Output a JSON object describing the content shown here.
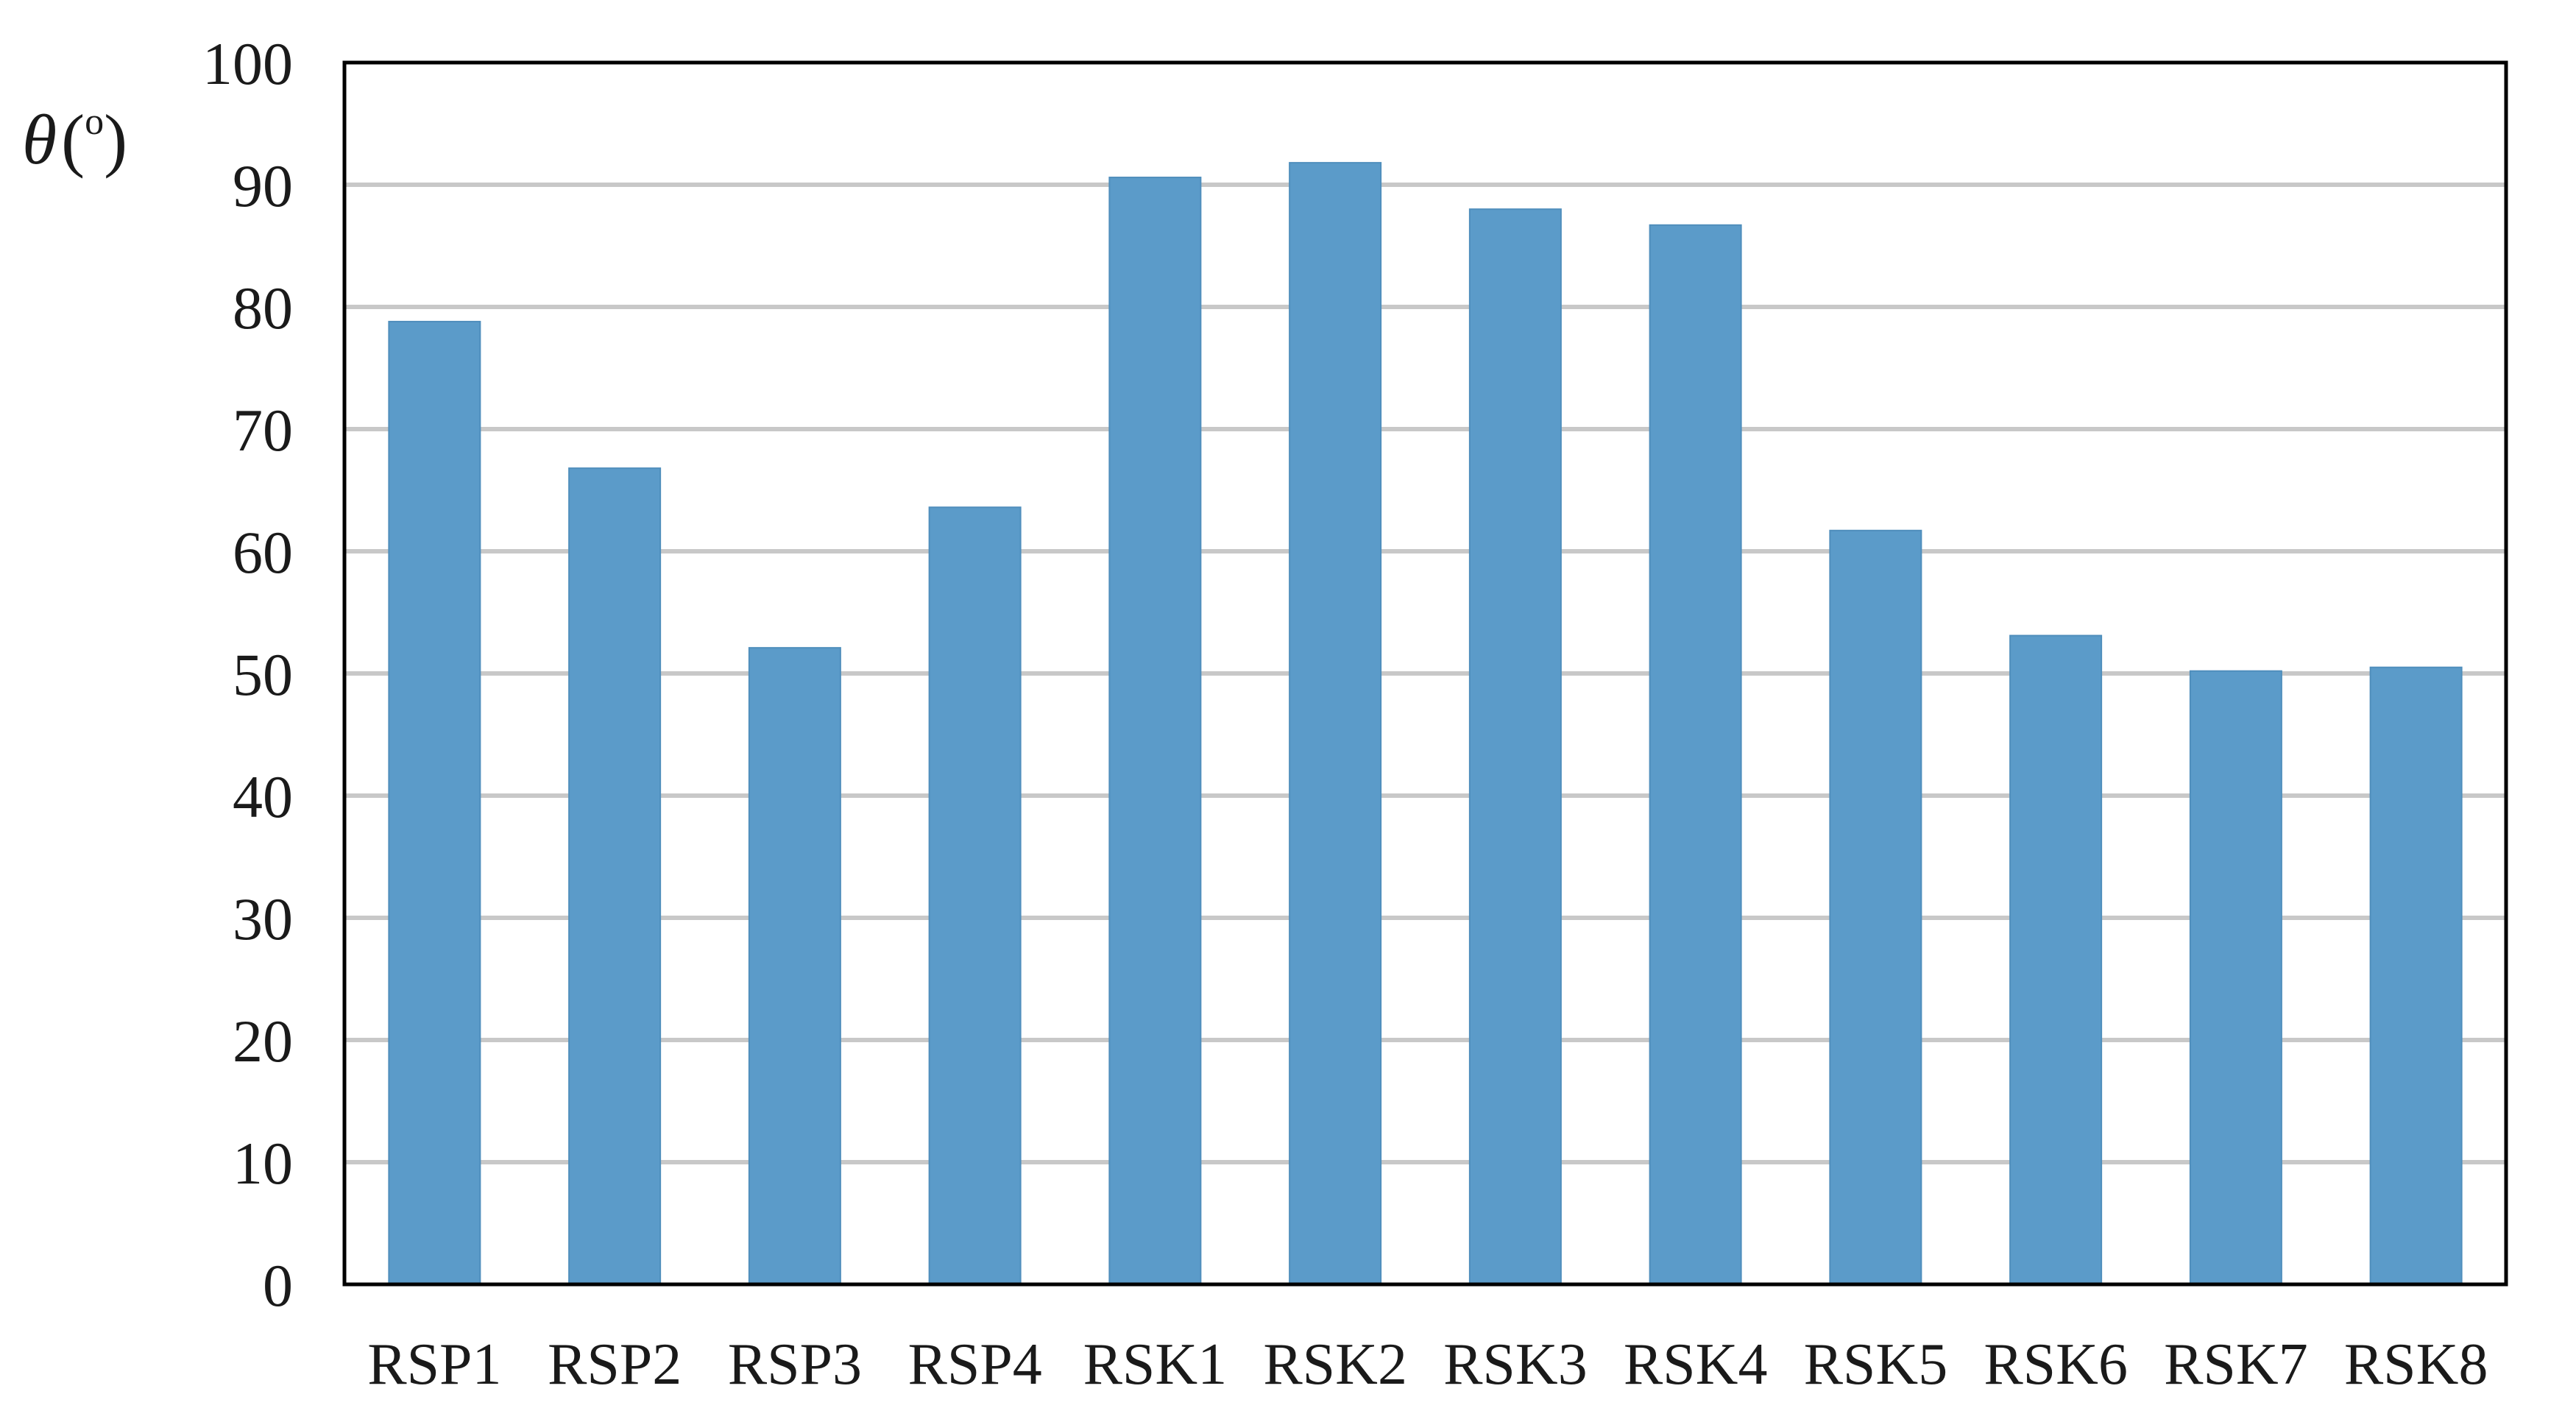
{
  "chart_data": {
    "type": "bar",
    "title": "",
    "xlabel": "",
    "ylabel": {
      "symbol": "θ",
      "open": "(",
      "unit": "o",
      "close": ")"
    },
    "categories": [
      "RSP1",
      "RSP2",
      "RSP3",
      "RSP4",
      "RSK1",
      "RSK2",
      "RSK3",
      "RSK4",
      "RSK5",
      "RSK6",
      "RSK7",
      "RSK8"
    ],
    "values": [
      78.8,
      66.8,
      52.1,
      63.6,
      90.6,
      91.8,
      88.0,
      86.7,
      61.7,
      53.1,
      50.2,
      50.5
    ],
    "ylim": [
      0,
      100
    ],
    "yticks": [
      "0",
      "10",
      "20",
      "30",
      "40",
      "50",
      "60",
      "70",
      "80",
      "90",
      "100"
    ],
    "grid": true,
    "legend": "none",
    "colors": {
      "bar": "#5b9bc9",
      "bar_edge": "#4f8ebc",
      "grid": "#c8c8c8",
      "frame": "#000000"
    }
  }
}
